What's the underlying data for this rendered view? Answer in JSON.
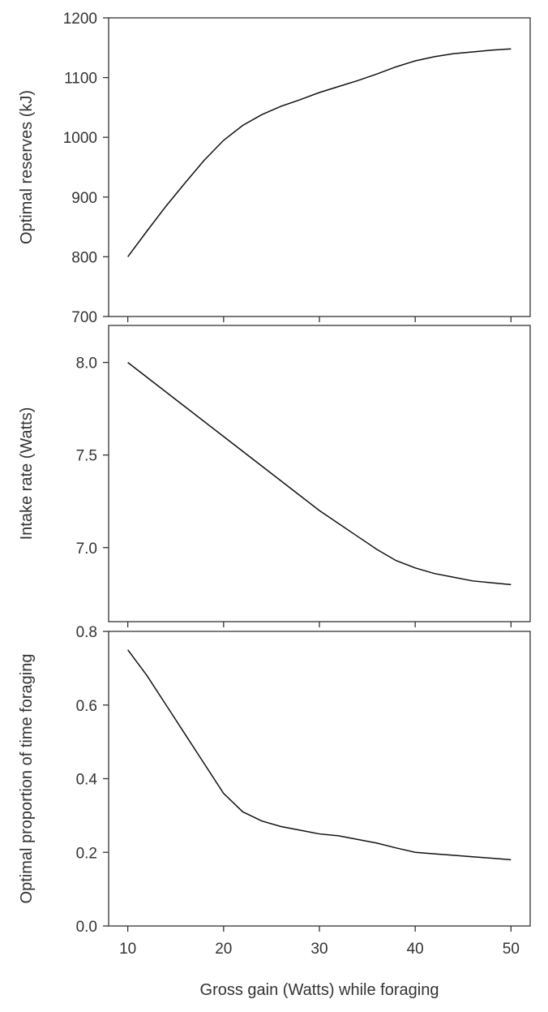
{
  "chart_data": [
    {
      "type": "line",
      "title": "",
      "xlabel": "",
      "ylabel": "Optimal reserves (kJ)",
      "xlim": [
        8,
        52
      ],
      "ylim": [
        700,
        1200
      ],
      "xticks": [
        10,
        20,
        30,
        40,
        50
      ],
      "xtick_labels": [],
      "yticks": [
        700,
        800,
        900,
        1000,
        1100,
        1200
      ],
      "ytick_labels": [
        "700",
        "800",
        "900",
        "1000",
        "1100",
        "1200"
      ],
      "grid": false,
      "series": [
        {
          "x": [
            10,
            12,
            14,
            16,
            18,
            20,
            22,
            24,
            26,
            28,
            30,
            32,
            34,
            36,
            38,
            40,
            42,
            44,
            46,
            48,
            50
          ],
          "y": [
            800,
            843,
            885,
            924,
            962,
            995,
            1020,
            1038,
            1052,
            1063,
            1075,
            1085,
            1095,
            1106,
            1118,
            1128,
            1135,
            1140,
            1143,
            1146,
            1148
          ]
        }
      ]
    },
    {
      "type": "line",
      "title": "",
      "xlabel": "",
      "ylabel": "Intake rate (Watts)",
      "xlim": [
        8,
        52
      ],
      "ylim": [
        6.6,
        8.2
      ],
      "xticks": [
        10,
        20,
        30,
        40,
        50
      ],
      "xtick_labels": [],
      "yticks": [
        7.0,
        7.5,
        8.0
      ],
      "ytick_labels": [
        "7.0",
        "7.5",
        "8.0"
      ],
      "grid": false,
      "series": [
        {
          "x": [
            10,
            12,
            14,
            16,
            18,
            20,
            22,
            24,
            26,
            28,
            30,
            32,
            34,
            36,
            38,
            40,
            42,
            44,
            46,
            48,
            50
          ],
          "y": [
            8.0,
            7.92,
            7.84,
            7.76,
            7.68,
            7.6,
            7.52,
            7.44,
            7.36,
            7.28,
            7.2,
            7.13,
            7.06,
            6.99,
            6.93,
            6.89,
            6.86,
            6.84,
            6.82,
            6.81,
            6.8
          ]
        }
      ]
    },
    {
      "type": "line",
      "title": "",
      "xlabel": "Gross gain (Watts) while foraging",
      "ylabel": "Optimal proportion of time foraging",
      "xlim": [
        8,
        52
      ],
      "ylim": [
        0.0,
        0.8
      ],
      "xticks": [
        10,
        20,
        30,
        40,
        50
      ],
      "xtick_labels": [
        "10",
        "20",
        "30",
        "40",
        "50"
      ],
      "yticks": [
        0.0,
        0.2,
        0.4,
        0.6,
        0.8
      ],
      "ytick_labels": [
        "0.0",
        "0.2",
        "0.4",
        "0.6",
        "0.8"
      ],
      "grid": false,
      "series": [
        {
          "x": [
            10,
            12,
            14,
            16,
            18,
            20,
            22,
            24,
            26,
            28,
            30,
            32,
            34,
            36,
            38,
            40,
            42,
            44,
            46,
            48,
            50
          ],
          "y": [
            0.75,
            0.68,
            0.6,
            0.52,
            0.44,
            0.36,
            0.31,
            0.285,
            0.27,
            0.26,
            0.25,
            0.245,
            0.235,
            0.225,
            0.212,
            0.2,
            0.196,
            0.192,
            0.188,
            0.184,
            0.18
          ]
        }
      ]
    }
  ]
}
